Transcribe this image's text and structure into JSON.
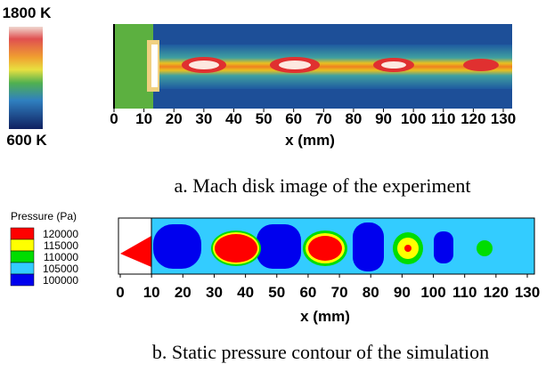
{
  "panels": [
    {
      "colorbar": {
        "top_label": "1800 K",
        "bottom_label": "600 K"
      },
      "xlim": [
        0,
        130
      ],
      "xticks": [
        0,
        10,
        20,
        30,
        40,
        50,
        60,
        70,
        80,
        90,
        100,
        110,
        120,
        130
      ],
      "xlabel": "x (mm)",
      "caption": "a. Mach disk image of the experiment"
    },
    {
      "legend": {
        "title": "Pressure (Pa)",
        "levels": [
          {
            "value": 120000,
            "color": "#ff0000"
          },
          {
            "value": 115000,
            "color": "#ffff00"
          },
          {
            "value": 110000,
            "color": "#00dd00"
          },
          {
            "value": 105000,
            "color": "#33ccff"
          },
          {
            "value": 100000,
            "color": "#0000ee"
          }
        ]
      },
      "xlim": [
        0,
        130
      ],
      "xticks": [
        0,
        10,
        20,
        30,
        40,
        50,
        60,
        70,
        80,
        90,
        100,
        110,
        120,
        130
      ],
      "xlabel": "x (mm)",
      "caption": "b. Static pressure contour of the simulation"
    }
  ]
}
